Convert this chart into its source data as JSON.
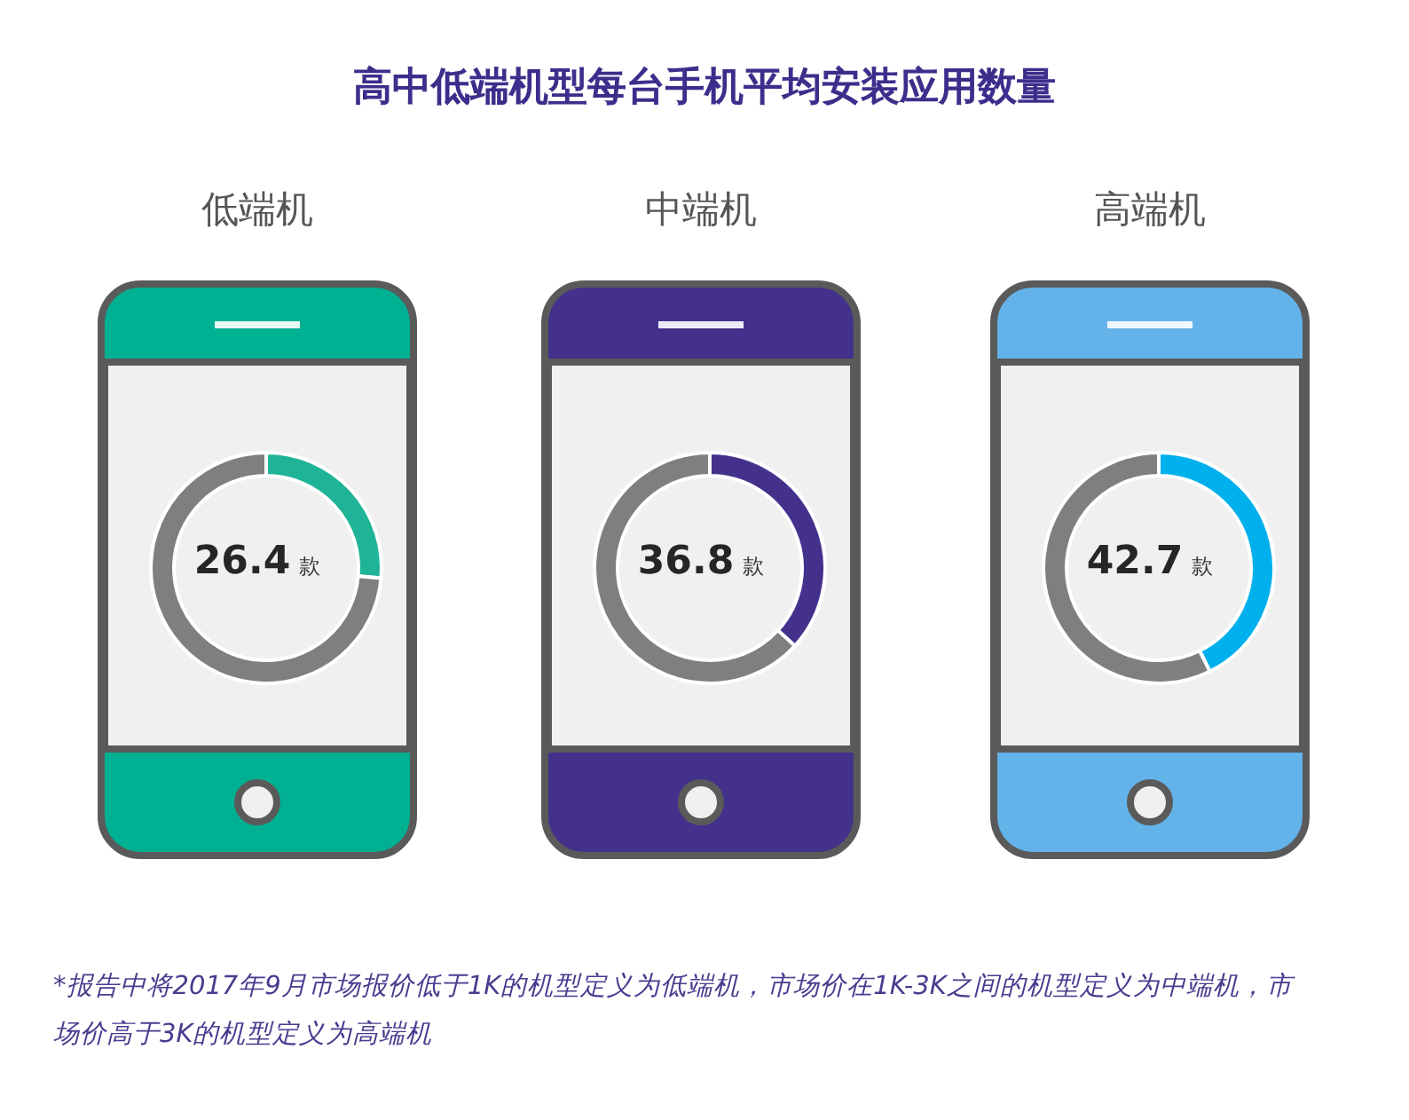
{
  "chart_data": [
    {
      "type": "other",
      "title": "高中低端机型每台手机平均安装应用数量"
    },
    {
      "type": "donut",
      "title": "低端机",
      "categories": [
        null,
        null
      ],
      "values": [
        26.4,
        73.6
      ],
      "colors": [
        "#1fb497",
        "#7f7f7f"
      ],
      "annotations": [
        "26.4 款"
      ]
    },
    {
      "type": "donut",
      "title": "中端机",
      "categories": [
        null,
        null
      ],
      "values": [
        36.8,
        63.2
      ],
      "colors": [
        "#43318c",
        "#7f7f7f"
      ],
      "annotations": [
        "36.8 款"
      ]
    },
    {
      "type": "donut",
      "title": "高端机",
      "categories": [
        null,
        null
      ],
      "values": [
        42.7,
        57.3
      ],
      "colors": [
        "#00b0ec",
        "#7f7f7f"
      ],
      "annotations": [
        "42.7 款"
      ]
    },
    {
      "type": "other",
      "annotations": [
        "*报告中将2017年9月市场报价低于1K的机型定义为低端机，市场价在1K-3K之间的机型定义为中端机，市场价高于3K的机型定义为高端机"
      ]
    }
  ]
}
